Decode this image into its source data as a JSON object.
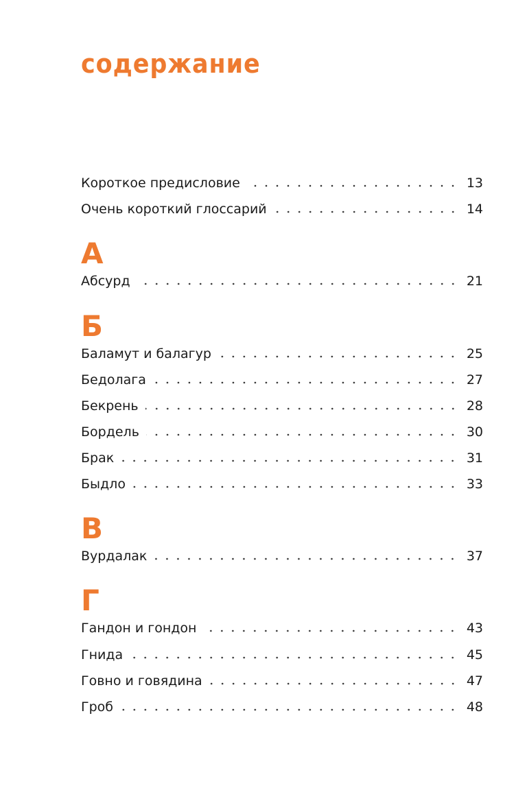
{
  "title": "содержание",
  "intro": [
    {
      "label": "Короткое предисловие",
      "page": "13"
    },
    {
      "label": "Очень короткий глоссарий",
      "page": "14"
    }
  ],
  "sections": [
    {
      "letter": "А",
      "entries": [
        {
          "label": "Абсурд",
          "page": "21"
        }
      ]
    },
    {
      "letter": "Б",
      "entries": [
        {
          "label": "Баламут и балагур",
          "page": "25"
        },
        {
          "label": "Бедолага",
          "page": "27"
        },
        {
          "label": "Бекрень",
          "page": "28"
        },
        {
          "label": "Бордель",
          "page": "30"
        },
        {
          "label": "Брак",
          "page": "31"
        },
        {
          "label": "Быдло",
          "page": "33"
        }
      ]
    },
    {
      "letter": "В",
      "entries": [
        {
          "label": "Вурдалак",
          "page": "37"
        }
      ]
    },
    {
      "letter": "Г",
      "entries": [
        {
          "label": "Гандон и гондон",
          "page": "43"
        },
        {
          "label": "Гнида",
          "page": "45"
        },
        {
          "label": "Говно и говядина",
          "page": "47"
        },
        {
          "label": "Гроб",
          "page": "48"
        }
      ]
    }
  ],
  "colors": {
    "accent": "#ee7a30",
    "text": "#1a1a1a"
  }
}
